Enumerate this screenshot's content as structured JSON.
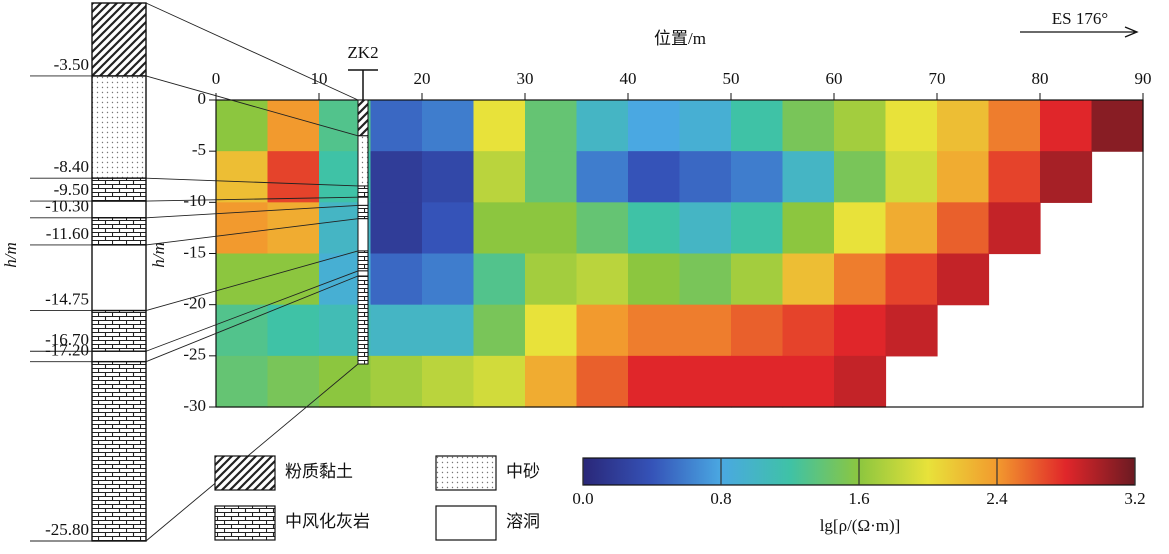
{
  "chart_data": {
    "type": "heatmap",
    "xlabel": "位置/m",
    "ylabel": "h/m",
    "annotation": "ES 176°",
    "xlim": [
      0,
      90
    ],
    "xticks": [
      0,
      10,
      20,
      30,
      40,
      50,
      60,
      70,
      80,
      90
    ],
    "ylim": [
      -30,
      0
    ],
    "yticks": [
      0,
      -5,
      -10,
      -15,
      -20,
      -25,
      -30
    ],
    "x": [
      2.5,
      7.5,
      12.5,
      17.5,
      22.5,
      27.5,
      32.5,
      37.5,
      42.5,
      47.5,
      52.5,
      57.5,
      62.5,
      67.5,
      72.5,
      77.5,
      82.5,
      87.5
    ],
    "y": [
      -2.5,
      -7.5,
      -12.5,
      -17.5,
      -22.5,
      -27.5
    ],
    "values": [
      [
        1.6,
        2.4,
        1.3,
        0.5,
        0.6,
        2.0,
        1.4,
        1.0,
        0.8,
        0.9,
        1.2,
        1.5,
        1.7,
        2.0,
        2.2,
        2.5,
        2.8,
        3.1
      ],
      [
        2.2,
        2.7,
        1.2,
        0.2,
        0.3,
        1.8,
        1.4,
        0.6,
        0.4,
        0.5,
        0.6,
        1.0,
        1.5,
        1.9,
        2.3,
        2.7,
        3.0,
        null
      ],
      [
        2.4,
        2.3,
        1.0,
        0.2,
        0.4,
        1.6,
        1.6,
        1.4,
        1.2,
        1.0,
        1.2,
        1.6,
        2.0,
        2.3,
        2.6,
        2.9,
        null,
        null
      ],
      [
        1.6,
        1.6,
        0.9,
        0.5,
        0.6,
        1.3,
        1.7,
        1.8,
        1.6,
        1.5,
        1.7,
        2.2,
        2.5,
        2.7,
        2.9,
        null,
        null,
        null
      ],
      [
        1.3,
        1.2,
        1.1,
        1.0,
        1.0,
        1.5,
        2.0,
        2.4,
        2.5,
        2.5,
        2.6,
        2.7,
        2.8,
        2.9,
        null,
        null,
        null,
        null
      ],
      [
        1.4,
        1.5,
        1.6,
        1.7,
        1.8,
        1.9,
        2.3,
        2.6,
        2.8,
        2.8,
        2.8,
        2.8,
        2.9,
        null,
        null,
        null,
        null,
        null
      ]
    ],
    "colorbar": {
      "label": "lg[ρ/(Ω·m)]",
      "clim": [
        0,
        3.2
      ],
      "ticks": [
        {
          "value": 0,
          "label": "0.0"
        },
        0.8,
        1.6,
        2.4,
        3.2
      ],
      "colormap": [
        "#2a2778",
        "#3553b8",
        "#4aa8e2",
        "#3fc2a6",
        "#8cc63f",
        "#e8e23a",
        "#f29a2e",
        "#e0262a",
        "#6b1a22"
      ]
    },
    "borehole": {
      "name": "ZK2",
      "ylabel": "h/m",
      "depths": [
        {
          "value": -3.5,
          "label": "-3.50"
        },
        {
          "value": -8.4,
          "label": "-8.40"
        },
        {
          "value": -9.5,
          "label": "-9.50"
        },
        {
          "value": -10.3,
          "label": "-10.30"
        },
        {
          "value": -11.6,
          "label": "-11.60"
        },
        {
          "value": -14.75,
          "label": "-14.75"
        },
        {
          "value": -16.7,
          "label": "-16.70"
        },
        {
          "value": -17.2,
          "label": "-17.20"
        },
        {
          "value": -25.8,
          "label": "-25.80"
        }
      ],
      "layer_patterns": [
        "hatch",
        "dots",
        "brick",
        "cave",
        "brick",
        "cave",
        "brick",
        "cave",
        "brick"
      ]
    },
    "legend": [
      {
        "label": "粉质黏土",
        "pattern": "hatch"
      },
      {
        "label": "中砂",
        "pattern": "dots"
      },
      {
        "label": "中风化灰岩",
        "pattern": "brick"
      },
      {
        "label": "溶洞",
        "pattern": "cave"
      }
    ]
  }
}
